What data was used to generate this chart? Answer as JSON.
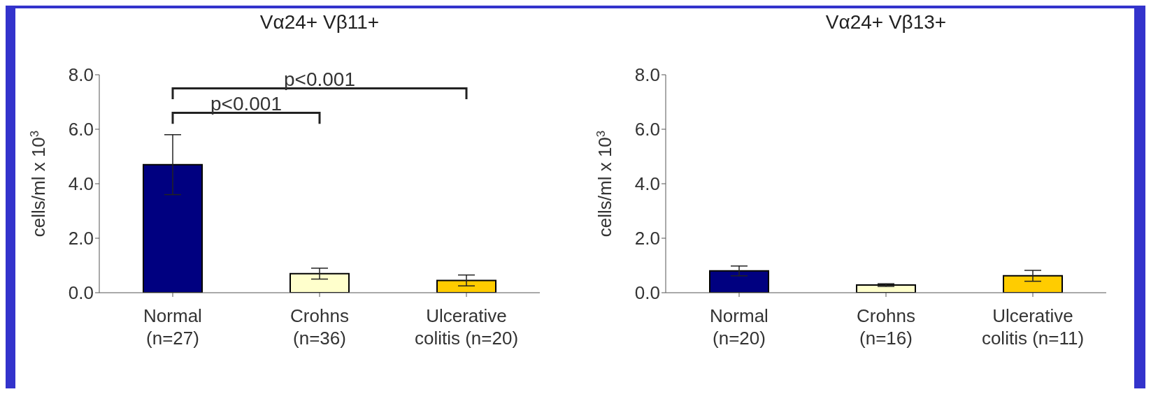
{
  "chart_data": [
    {
      "type": "bar",
      "title": "Vα24+  Vβ11+",
      "ylabel": "cells/ml x 10$^{3}$",
      "categories": [
        "Normal\n(n=27)",
        "Crohns\n(n=36)",
        "Ulcerative\ncolitis (n=20)"
      ],
      "values": [
        4.7,
        0.7,
        0.45
      ],
      "colors": [
        "#000080",
        "#ffffcc",
        "#ffcc00"
      ],
      "errors": [
        [
          3.6,
          5.8
        ],
        0.2,
        0.2
      ],
      "ylim": [
        0,
        8
      ],
      "yticks": [
        {
          "value": 0,
          "label": "0.0"
        },
        {
          "value": 2,
          "label": "2.0"
        },
        {
          "value": 4,
          "label": "4.0"
        },
        {
          "value": 6,
          "label": "6.0"
        },
        {
          "value": 8,
          "label": "8.0"
        }
      ],
      "annotations": [
        "p<0.001",
        "p<0.001"
      ]
    },
    {
      "type": "bar",
      "title": "Vα24+  Vβ13+",
      "ylabel": "cells/ml x 10$^{3}$",
      "categories": [
        "Normal\n(n=20)",
        "Crohns\n(n=16)",
        "Ulcerative\ncolitis (n=11)"
      ],
      "values": [
        0.8,
        0.28,
        0.62
      ],
      "colors": [
        "#000080",
        "#ffffcc",
        "#ffcc00"
      ],
      "errors": [
        0.18,
        0.05,
        0.2
      ],
      "ylim": [
        0,
        8
      ],
      "yticks": [
        {
          "value": 0,
          "label": "0.0"
        },
        {
          "value": 2,
          "label": "2.0"
        },
        {
          "value": 4,
          "label": "4.0"
        },
        {
          "value": 6,
          "label": "6.0"
        },
        {
          "value": 8,
          "label": "8.0"
        }
      ]
    }
  ]
}
